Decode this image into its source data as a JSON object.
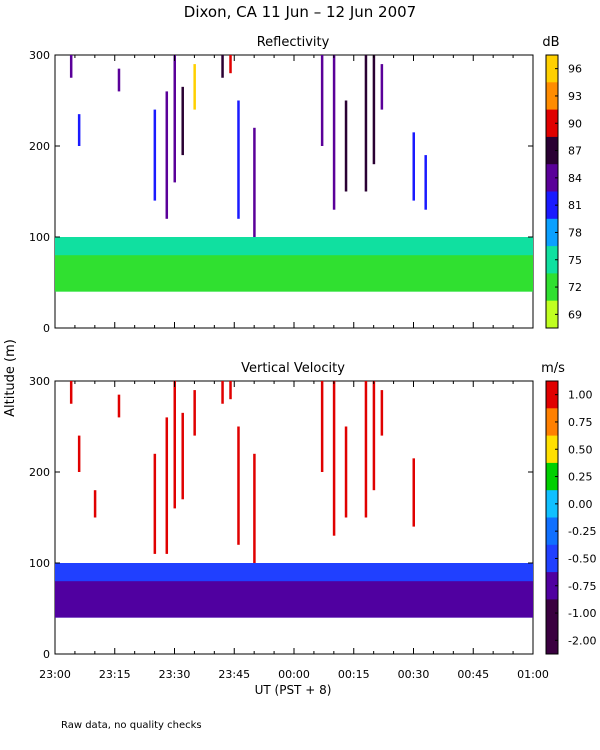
{
  "figure": {
    "title": "Dixon, CA  11 Jun – 12 Jun 2007",
    "ylabel": "Altitude (m)",
    "xlabel": "UT  (PST + 8)",
    "footnote": "Raw data, no quality checks",
    "x_ticks": [
      "23:00",
      "23:15",
      "23:30",
      "23:45",
      "00:00",
      "00:15",
      "00:30",
      "00:45",
      "01:00"
    ],
    "x_range_minutes": [
      0,
      120
    ]
  },
  "chart_data": [
    {
      "type": "heatmap",
      "title": "Reflectivity",
      "xlabel": "UT  (PST + 8)",
      "ylabel": "Altitude (m)",
      "ylim": [
        0,
        300
      ],
      "y_ticks": [
        0,
        100,
        200,
        300
      ],
      "colorbar": {
        "unit": "dB",
        "ticks": [
          "96",
          "93",
          "90",
          "87",
          "84",
          "81",
          "78",
          "75",
          "72",
          "69"
        ],
        "colors": [
          "#ffd000",
          "#ff8c00",
          "#e00000",
          "#2a0033",
          "#5a0099",
          "#1a1aff",
          "#0aa0ff",
          "#10e0a0",
          "#30e030",
          "#c0ff20"
        ]
      },
      "layers": [
        {
          "name": "ground-clutter band",
          "x_range": [
            0,
            120
          ],
          "alt_range": [
            40,
            100
          ],
          "value_db": 75
        },
        {
          "name": "near-surface layer",
          "x_range": [
            0,
            120
          ],
          "alt_range": [
            40,
            80
          ],
          "value_db": 72
        }
      ],
      "streaks": [
        {
          "x": 4,
          "top": 300,
          "bottom": 275,
          "value_db": 84
        },
        {
          "x": 6,
          "top": 235,
          "bottom": 200,
          "value_db": 81
        },
        {
          "x": 16,
          "top": 285,
          "bottom": 260,
          "value_db": 84
        },
        {
          "x": 25,
          "top": 240,
          "bottom": 140,
          "value_db": 81
        },
        {
          "x": 28,
          "top": 260,
          "bottom": 120,
          "value_db": 84
        },
        {
          "x": 30,
          "top": 300,
          "bottom": 160,
          "value_db": 84
        },
        {
          "x": 32,
          "top": 265,
          "bottom": 190,
          "value_db": 87
        },
        {
          "x": 35,
          "top": 290,
          "bottom": 240,
          "value_db": 96
        },
        {
          "x": 42,
          "top": 300,
          "bottom": 275,
          "value_db": 87
        },
        {
          "x": 44,
          "top": 300,
          "bottom": 280,
          "value_db": 90
        },
        {
          "x": 46,
          "top": 250,
          "bottom": 120,
          "value_db": 81
        },
        {
          "x": 50,
          "top": 220,
          "bottom": 100,
          "value_db": 84
        },
        {
          "x": 67,
          "top": 300,
          "bottom": 200,
          "value_db": 84
        },
        {
          "x": 70,
          "top": 300,
          "bottom": 130,
          "value_db": 84
        },
        {
          "x": 73,
          "top": 250,
          "bottom": 150,
          "value_db": 87
        },
        {
          "x": 78,
          "top": 300,
          "bottom": 150,
          "value_db": 87
        },
        {
          "x": 80,
          "top": 300,
          "bottom": 180,
          "value_db": 87
        },
        {
          "x": 82,
          "top": 290,
          "bottom": 240,
          "value_db": 84
        },
        {
          "x": 90,
          "top": 215,
          "bottom": 140,
          "value_db": 81
        },
        {
          "x": 93,
          "top": 190,
          "bottom": 130,
          "value_db": 81
        }
      ]
    },
    {
      "type": "heatmap",
      "title": "Vertical Velocity",
      "xlabel": "UT  (PST + 8)",
      "ylabel": "Altitude (m)",
      "ylim": [
        0,
        300
      ],
      "y_ticks": [
        0,
        100,
        200,
        300
      ],
      "colorbar": {
        "unit": "m/s",
        "ticks": [
          "1.00",
          "0.75",
          "0.50",
          "0.25",
          "0.00",
          "-0.25",
          "-0.50",
          "-0.75",
          "-1.00",
          "-2.00"
        ],
        "colors": [
          "#e00000",
          "#ff8000",
          "#ffe000",
          "#00d000",
          "#10c0ff",
          "#1070ff",
          "#2040ff",
          "#5000a0",
          "#3a0040",
          "#3a0040"
        ]
      },
      "layers": [
        {
          "name": "ground-clutter band",
          "x_range": [
            0,
            120
          ],
          "alt_range": [
            40,
            100
          ],
          "value_ms": -0.5
        },
        {
          "name": "near-surface layer",
          "x_range": [
            0,
            120
          ],
          "alt_range": [
            40,
            80
          ],
          "value_ms": -0.75
        }
      ],
      "streaks": [
        {
          "x": 4,
          "top": 300,
          "bottom": 275,
          "value_ms": 1.0
        },
        {
          "x": 6,
          "top": 240,
          "bottom": 200,
          "value_ms": 1.0
        },
        {
          "x": 10,
          "top": 180,
          "bottom": 150,
          "value_ms": 1.0
        },
        {
          "x": 16,
          "top": 285,
          "bottom": 260,
          "value_ms": 1.0
        },
        {
          "x": 25,
          "top": 220,
          "bottom": 110,
          "value_ms": 1.0
        },
        {
          "x": 28,
          "top": 260,
          "bottom": 110,
          "value_ms": 1.0
        },
        {
          "x": 30,
          "top": 300,
          "bottom": 160,
          "value_ms": 1.0
        },
        {
          "x": 32,
          "top": 265,
          "bottom": 170,
          "value_ms": 1.0
        },
        {
          "x": 35,
          "top": 290,
          "bottom": 240,
          "value_ms": 1.0
        },
        {
          "x": 42,
          "top": 300,
          "bottom": 275,
          "value_ms": 1.0
        },
        {
          "x": 44,
          "top": 300,
          "bottom": 280,
          "value_ms": 1.0
        },
        {
          "x": 46,
          "top": 250,
          "bottom": 120,
          "value_ms": 1.0
        },
        {
          "x": 50,
          "top": 220,
          "bottom": 100,
          "value_ms": 1.0
        },
        {
          "x": 67,
          "top": 300,
          "bottom": 200,
          "value_ms": 1.0
        },
        {
          "x": 70,
          "top": 300,
          "bottom": 130,
          "value_ms": 1.0
        },
        {
          "x": 73,
          "top": 250,
          "bottom": 150,
          "value_ms": 1.0
        },
        {
          "x": 78,
          "top": 300,
          "bottom": 150,
          "value_ms": 1.0
        },
        {
          "x": 80,
          "top": 300,
          "bottom": 180,
          "value_ms": 1.0
        },
        {
          "x": 82,
          "top": 290,
          "bottom": 240,
          "value_ms": 1.0
        },
        {
          "x": 90,
          "top": 215,
          "bottom": 140,
          "value_ms": 1.0
        }
      ]
    }
  ]
}
